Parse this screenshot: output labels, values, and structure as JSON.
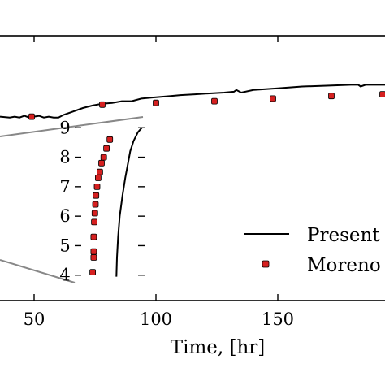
{
  "chart_data": [
    {
      "type": "line",
      "xlabel": "Time, [hr]",
      "ylabel": "",
      "xlim": [
        36,
        194
      ],
      "x_ticks": [
        50,
        100,
        150
      ],
      "x_tick_labels": [
        "50",
        "100",
        "150"
      ],
      "legend": {
        "placement": "lower-right",
        "entries": [
          "Present s",
          "Moreno e"
        ]
      },
      "series": [
        {
          "name": "Present s",
          "marker": "line",
          "color": "#000000",
          "x": [
            36,
            40,
            42,
            44,
            46,
            48,
            50,
            52,
            54,
            56,
            58,
            60,
            62,
            66,
            70,
            74,
            78,
            82,
            86,
            90,
            94,
            98,
            102,
            106,
            110,
            116,
            122,
            128,
            132,
            133,
            135,
            140,
            150,
            160,
            170,
            180,
            183,
            184,
            186,
            190,
            194
          ],
          "y": [
            0.06,
            0.05,
            0.06,
            0.05,
            0.07,
            0.05,
            0.06,
            0.07,
            0.05,
            0.06,
            0.05,
            0.05,
            0.08,
            0.12,
            0.16,
            0.19,
            0.21,
            0.22,
            0.24,
            0.24,
            0.27,
            0.28,
            0.29,
            0.3,
            0.31,
            0.32,
            0.33,
            0.34,
            0.35,
            0.37,
            0.34,
            0.37,
            0.39,
            0.41,
            0.42,
            0.43,
            0.43,
            0.41,
            0.43,
            0.43,
            0.43
          ]
        },
        {
          "name": "Moreno e",
          "marker": "circle",
          "color": "#d62020",
          "x": [
            49,
            78,
            100,
            124,
            148,
            172,
            193
          ],
          "y": [
            0.06,
            0.2,
            0.22,
            0.24,
            0.27,
            0.3,
            0.32
          ]
        }
      ]
    },
    {
      "type": "line",
      "inset": true,
      "ylim": [
        3.8,
        9.2
      ],
      "y_ticks": [
        4,
        5,
        6,
        7,
        8,
        9
      ],
      "y_tick_labels": [
        "4",
        "5",
        "6",
        "7",
        "8",
        "9"
      ],
      "series": [
        {
          "name": "Present s",
          "marker": "line",
          "color": "#000000",
          "x": [
            0.49,
            0.5,
            0.52,
            0.55,
            0.6,
            0.65,
            0.7,
            0.74,
            0.8,
            0.88,
            0.95
          ],
          "y": [
            3.95,
            4.6,
            5.3,
            6.0,
            6.7,
            7.3,
            7.8,
            8.2,
            8.55,
            8.85,
            9.0
          ]
        },
        {
          "name": "Moreno e",
          "marker": "circle",
          "color": "#d62020",
          "x": [
            0.06,
            0.08,
            0.08,
            0.08,
            0.09,
            0.1,
            0.11,
            0.12,
            0.14,
            0.16,
            0.19,
            0.22,
            0.26,
            0.31,
            0.37
          ],
          "y": [
            4.1,
            4.6,
            4.8,
            5.3,
            5.8,
            6.1,
            6.4,
            6.7,
            7.0,
            7.3,
            7.5,
            7.8,
            8.0,
            8.3,
            8.6
          ]
        }
      ]
    }
  ]
}
